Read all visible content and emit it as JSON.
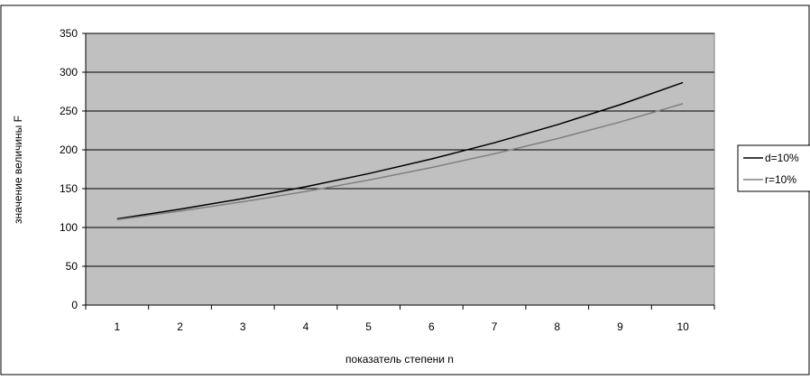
{
  "chart_data": {
    "type": "line",
    "title": "",
    "xlabel": "показатель степени n",
    "ylabel": "значение величины F",
    "categories": [
      "1",
      "2",
      "3",
      "4",
      "5",
      "6",
      "7",
      "8",
      "9",
      "10"
    ],
    "ylim": [
      0,
      350
    ],
    "yticks": [
      "0",
      "50",
      "100",
      "150",
      "200",
      "250",
      "300",
      "350"
    ],
    "grid": true,
    "legend_position": "right",
    "plot_background": "#c0c0c0",
    "series": [
      {
        "name": "d=10%",
        "color": "#000000",
        "values": [
          111.1,
          123.5,
          137.2,
          152.4,
          169.4,
          188.2,
          209.1,
          232.3,
          258.1,
          286.8
        ]
      },
      {
        "name": "r=10%",
        "color": "#808080",
        "values": [
          110.0,
          121.0,
          133.1,
          146.4,
          161.1,
          177.2,
          194.9,
          214.4,
          235.8,
          259.4
        ]
      }
    ]
  }
}
